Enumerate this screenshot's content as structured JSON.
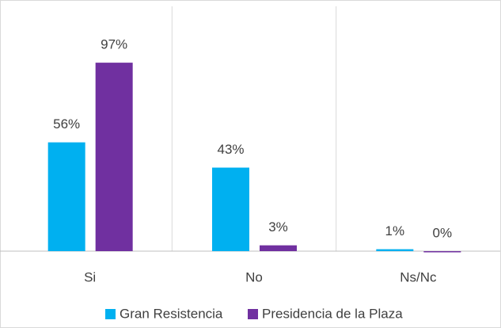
{
  "chart_data": {
    "type": "bar",
    "categories": [
      "Si",
      "No",
      "Ns/Nc"
    ],
    "series": [
      {
        "name": "Gran Resistencia",
        "color": "#00b0f0",
        "values": [
          56,
          43,
          1
        ],
        "value_labels": [
          "56%",
          "43%",
          "1%"
        ]
      },
      {
        "name": "Presidencia de la Plaza",
        "color": "#7030a0",
        "values": [
          97,
          3,
          0
        ],
        "value_labels": [
          "97%",
          "3%",
          "0%"
        ]
      }
    ],
    "ylim": [
      0,
      126
    ],
    "legend": "bottom"
  }
}
